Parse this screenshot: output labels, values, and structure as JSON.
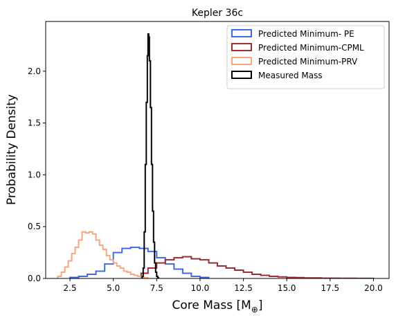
{
  "chart_data": {
    "type": "histogram",
    "title": "Kepler 36c",
    "xlabel": "Core Mass [M",
    "xlabel_sub": "⊕",
    "xlabel_close": "]",
    "ylabel": "Probability Density",
    "xlim": [
      1.1,
      20.9
    ],
    "ylim": [
      0,
      2.48
    ],
    "xticks": [
      2.5,
      5.0,
      7.5,
      10.0,
      12.5,
      15.0,
      17.5,
      20.0
    ],
    "xtick_labels": [
      "2.5",
      "5.0",
      "7.5",
      "10.0",
      "12.5",
      "15.0",
      "17.5",
      "20.0"
    ],
    "yticks": [
      0.0,
      0.5,
      1.0,
      1.5,
      2.0
    ],
    "ytick_labels": [
      "0.0",
      "0.5",
      "1.0",
      "1.5",
      "2.0"
    ],
    "legend_position": "top-right",
    "series": [
      {
        "name": "Predicted Minimum- PE",
        "color": "#4169e1",
        "bin_edges": [
          2.5,
          3.0,
          3.5,
          4.0,
          4.5,
          5.0,
          5.5,
          6.0,
          6.5,
          7.0,
          7.5,
          8.0,
          8.5,
          9.0,
          9.5,
          10.0,
          10.5
        ],
        "values": [
          0.01,
          0.02,
          0.04,
          0.07,
          0.14,
          0.25,
          0.29,
          0.3,
          0.29,
          0.26,
          0.2,
          0.14,
          0.09,
          0.05,
          0.02,
          0.01
        ]
      },
      {
        "name": "Predicted Minimum-CPML",
        "color": "#9b2d30",
        "bin_edges": [
          6.6,
          7.0,
          7.5,
          8.0,
          8.5,
          9.0,
          9.5,
          10.0,
          10.5,
          11.0,
          11.5,
          12.0,
          12.5,
          13.0,
          13.5,
          14.0,
          14.5,
          15.0,
          15.5,
          16.0,
          17.0,
          18.0,
          19.0,
          20.0
        ],
        "values": [
          0.05,
          0.1,
          0.15,
          0.18,
          0.2,
          0.21,
          0.19,
          0.18,
          0.15,
          0.12,
          0.1,
          0.08,
          0.06,
          0.04,
          0.03,
          0.02,
          0.015,
          0.01,
          0.008,
          0.005,
          0.003,
          0.002,
          0.001
        ]
      },
      {
        "name": "Predicted Minimum-PRV",
        "color": "#f4a582",
        "bin_edges": [
          1.8,
          2.0,
          2.2,
          2.4,
          2.6,
          2.8,
          3.0,
          3.2,
          3.4,
          3.6,
          3.8,
          4.0,
          4.2,
          4.4,
          4.6,
          4.8,
          5.0,
          5.2,
          5.4,
          5.6,
          5.8,
          6.0,
          6.2,
          6.4,
          6.6,
          6.8,
          7.0
        ],
        "values": [
          0.02,
          0.06,
          0.11,
          0.17,
          0.24,
          0.3,
          0.37,
          0.45,
          0.44,
          0.45,
          0.43,
          0.37,
          0.32,
          0.28,
          0.22,
          0.18,
          0.15,
          0.12,
          0.1,
          0.07,
          0.06,
          0.04,
          0.03,
          0.02,
          0.01,
          0.005
        ]
      },
      {
        "name": "Measured Mass",
        "color": "#000000",
        "bin_edges": [
          6.66,
          6.72,
          6.78,
          6.84,
          6.9,
          6.96,
          7.0,
          7.04,
          7.08,
          7.14,
          7.2,
          7.26,
          7.32,
          7.38,
          7.44,
          7.5,
          7.56,
          7.62
        ],
        "values": [
          0.02,
          0.1,
          0.45,
          1.1,
          1.7,
          2.15,
          2.36,
          2.33,
          2.1,
          1.65,
          1.1,
          0.65,
          0.35,
          0.15,
          0.06,
          0.02,
          0.005
        ]
      }
    ]
  }
}
